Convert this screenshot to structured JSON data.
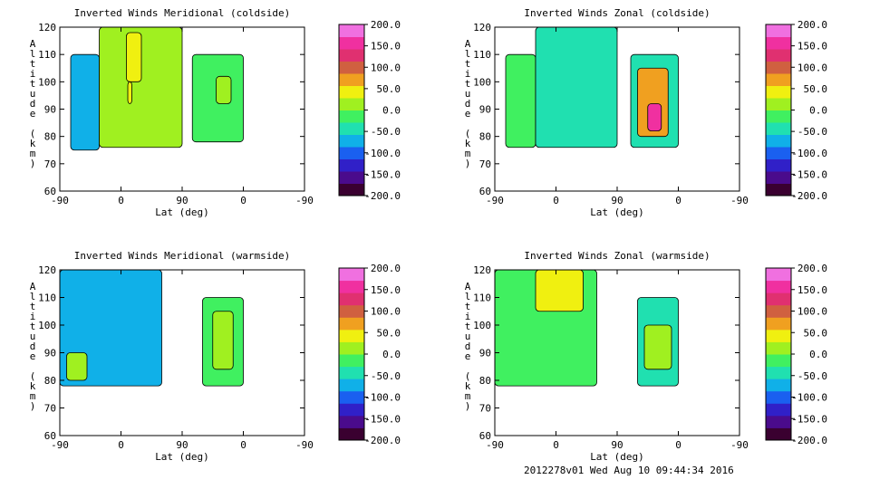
{
  "chart_data": [
    {
      "type": "heatmap",
      "title": "Inverted Winds Meridional (coldside)",
      "xlabel": "Lat (deg)",
      "ylabel": "Altitude (km)",
      "x_tick_labels": [
        "-90",
        "0",
        "90",
        "0",
        "-90"
      ],
      "y_tick_labels": [
        "60",
        "70",
        "80",
        "90",
        "100",
        "110",
        "120"
      ],
      "ylim": [
        60,
        120
      ],
      "colorbar_labels": [
        "200.0",
        "150.0",
        "100.0",
        "50.0",
        "0.0",
        "-50.0",
        "-100.0",
        "-150.0",
        "-200.0"
      ],
      "colorbar_range": [
        -200,
        200
      ],
      "fields": [
        {
          "x": [
            -74,
            -32
          ],
          "alt": [
            75,
            110
          ],
          "value": -75
        },
        {
          "x": [
            -32,
            90
          ],
          "alt": [
            76,
            120
          ],
          "value": 12
        },
        {
          "x": [
            8,
            30
          ],
          "alt": [
            100,
            118
          ],
          "value": 35
        },
        {
          "x": [
            10,
            16
          ],
          "alt": [
            92,
            100
          ],
          "value": 50
        },
        {
          "x": [
            105,
            180
          ],
          "alt": [
            78,
            110
          ],
          "value": -18
        },
        {
          "x": [
            140,
            162
          ],
          "alt": [
            92,
            102
          ],
          "value": 22
        }
      ]
    },
    {
      "type": "heatmap",
      "title": "Inverted Winds Zonal (coldside)",
      "xlabel": "Lat (deg)",
      "ylabel": "Altitude (km)",
      "x_tick_labels": [
        "-90",
        "0",
        "90",
        "0",
        "-90"
      ],
      "y_tick_labels": [
        "60",
        "70",
        "80",
        "90",
        "100",
        "110",
        "120"
      ],
      "ylim": [
        60,
        120
      ],
      "colorbar_labels": [
        "200.0",
        "150.0",
        "100.0",
        "50.0",
        "0.0",
        "-50.0",
        "-100.0",
        "-150.0",
        "-200.0"
      ],
      "colorbar_range": [
        -200,
        200
      ],
      "fields": [
        {
          "x": [
            -74,
            -30
          ],
          "alt": [
            76,
            110
          ],
          "value": -20
        },
        {
          "x": [
            -30,
            90
          ],
          "alt": [
            76,
            120
          ],
          "value": -55
        },
        {
          "x": [
            110,
            180
          ],
          "alt": [
            76,
            110
          ],
          "value": -40
        },
        {
          "x": [
            120,
            165
          ],
          "alt": [
            80,
            105
          ],
          "value": 70
        },
        {
          "x": [
            135,
            155
          ],
          "alt": [
            82,
            92
          ],
          "value": 160
        }
      ]
    },
    {
      "type": "heatmap",
      "title": "Inverted Winds Meridional (warmside)",
      "xlabel": "Lat (deg)",
      "ylabel": "Altitude (km)",
      "x_tick_labels": [
        "-90",
        "0",
        "90",
        "0",
        "-90"
      ],
      "y_tick_labels": [
        "60",
        "70",
        "80",
        "90",
        "100",
        "110",
        "120"
      ],
      "ylim": [
        60,
        120
      ],
      "colorbar_labels": [
        "200.0",
        "150.0",
        "100.0",
        "50.0",
        "0.0",
        "-50.0",
        "-100.0",
        "-150.0",
        "-200.0"
      ],
      "colorbar_range": [
        -200,
        200
      ],
      "fields": [
        {
          "x": [
            -90,
            60
          ],
          "alt": [
            78,
            120
          ],
          "value": -60
        },
        {
          "x": [
            -80,
            -50
          ],
          "alt": [
            80,
            90
          ],
          "value": 15
        },
        {
          "x": [
            120,
            180
          ],
          "alt": [
            78,
            110
          ],
          "value": -20
        },
        {
          "x": [
            135,
            165
          ],
          "alt": [
            84,
            105
          ],
          "value": 5
        }
      ]
    },
    {
      "type": "heatmap",
      "title": "Inverted Winds Zonal (warmside)",
      "xlabel": "Lat (deg)",
      "ylabel": "Altitude (km)",
      "x_tick_labels": [
        "-90",
        "0",
        "90",
        "0",
        "-90"
      ],
      "y_tick_labels": [
        "60",
        "70",
        "80",
        "90",
        "100",
        "110",
        "120"
      ],
      "ylim": [
        60,
        120
      ],
      "colorbar_labels": [
        "200.0",
        "150.0",
        "100.0",
        "50.0",
        "0.0",
        "-50.0",
        "-100.0",
        "-150.0",
        "-200.0"
      ],
      "colorbar_range": [
        -200,
        200
      ],
      "fields": [
        {
          "x": [
            -90,
            60
          ],
          "alt": [
            78,
            120
          ],
          "value": -15
        },
        {
          "x": [
            -30,
            40
          ],
          "alt": [
            105,
            120
          ],
          "value": 50
        },
        {
          "x": [
            120,
            180
          ],
          "alt": [
            78,
            110
          ],
          "value": -30
        },
        {
          "x": [
            130,
            170
          ],
          "alt": [
            84,
            100
          ],
          "value": 15
        }
      ]
    }
  ],
  "colors": {
    "colorbar": [
      "#3a0030",
      "#4a0b8c",
      "#3020c8",
      "#1a60f0",
      "#10b0e8",
      "#20e0b0",
      "#40f060",
      "#a0f020",
      "#f0f010",
      "#f0a020",
      "#d06040",
      "#e03070",
      "#f030a0",
      "#f070e0"
    ]
  },
  "footer": "2012278v01 Wed Aug 10 09:44:34 2016"
}
